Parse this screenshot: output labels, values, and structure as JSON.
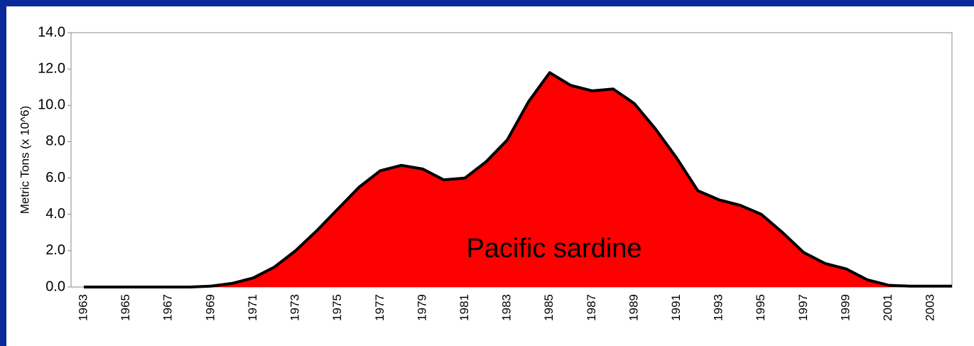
{
  "chart_data": {
    "type": "area",
    "y_label": "Metric Tons (x 10^6)",
    "annotation": "Pacific sardine",
    "categories": [
      "1963",
      null,
      "1965",
      null,
      "1967",
      null,
      "1969",
      null,
      "1971",
      null,
      "1973",
      null,
      "1975",
      null,
      "1977",
      null,
      "1979",
      null,
      "1981",
      null,
      "1983",
      null,
      "1985",
      null,
      "1987",
      null,
      "1989",
      null,
      "1991",
      null,
      "1993",
      null,
      "1995",
      null,
      "1997",
      null,
      "1999",
      null,
      "2001",
      null,
      "2003",
      null
    ],
    "values": [
      0,
      0,
      0,
      0,
      0,
      0,
      0.05,
      0.2,
      0.5,
      1.1,
      2.0,
      3.1,
      4.3,
      5.5,
      6.4,
      6.7,
      6.5,
      5.9,
      6.0,
      6.9,
      8.1,
      10.2,
      11.8,
      11.1,
      10.8,
      10.9,
      10.1,
      8.7,
      7.1,
      5.3,
      4.8,
      4.5,
      4.0,
      3.0,
      1.9,
      1.3,
      1.0,
      0.4,
      0.1,
      0.05,
      0.05,
      0.05
    ],
    "color": "#ff0000",
    "ylim": [
      0,
      14
    ],
    "yticks": [
      {
        "value": 0,
        "label": "0.0"
      },
      {
        "value": 2,
        "label": "2.0"
      },
      {
        "value": 4,
        "label": "4.0"
      },
      {
        "value": 6,
        "label": "6.0"
      },
      {
        "value": 8,
        "label": "8.0"
      },
      {
        "value": 10,
        "label": "10.0"
      },
      {
        "value": 12,
        "label": "12.0"
      },
      {
        "value": 14,
        "label": "14.0"
      }
    ]
  }
}
